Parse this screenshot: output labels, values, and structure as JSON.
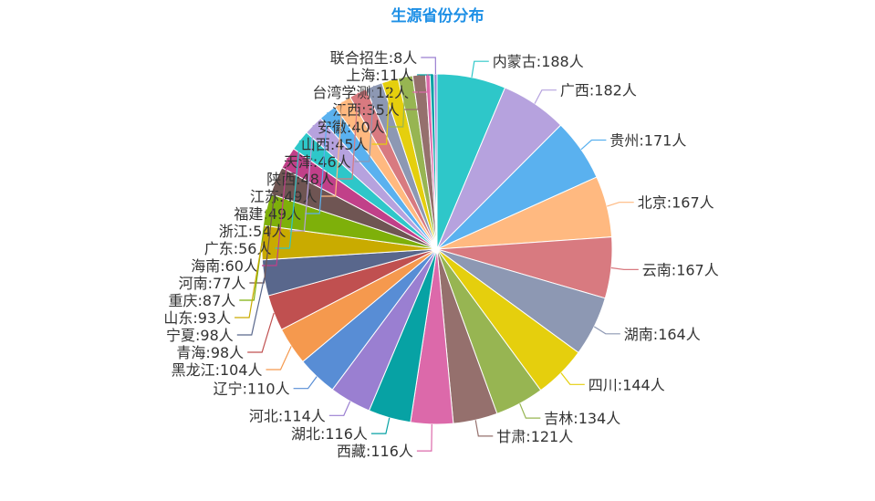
{
  "chart_data": {
    "type": "pie",
    "title": "生源省份分布",
    "unit": "人",
    "series": [
      {
        "name": "内蒙古",
        "value": 188,
        "color": "#2ec7c9"
      },
      {
        "name": "广西",
        "value": 182,
        "color": "#b6a2de"
      },
      {
        "name": "贵州",
        "value": 171,
        "color": "#5ab1ef"
      },
      {
        "name": "北京",
        "value": 167,
        "color": "#ffb980"
      },
      {
        "name": "云南",
        "value": 167,
        "color": "#d87a80"
      },
      {
        "name": "湖南",
        "value": 164,
        "color": "#8d98b3"
      },
      {
        "name": "四川",
        "value": 144,
        "color": "#e5cf0d"
      },
      {
        "name": "吉林",
        "value": 134,
        "color": "#97b552"
      },
      {
        "name": "甘肃",
        "value": 121,
        "color": "#95706d"
      },
      {
        "name": "西藏",
        "value": 116,
        "color": "#dc69aa"
      },
      {
        "name": "湖北",
        "value": 116,
        "color": "#07a2a4"
      },
      {
        "name": "河北",
        "value": 114,
        "color": "#9a7fd1"
      },
      {
        "name": "辽宁",
        "value": 110,
        "color": "#588dd5"
      },
      {
        "name": "黑龙江",
        "value": 104,
        "color": "#f5994e"
      },
      {
        "name": "青海",
        "value": 98,
        "color": "#c05050"
      },
      {
        "name": "宁夏",
        "value": 98,
        "color": "#59678c"
      },
      {
        "name": "山东",
        "value": 93,
        "color": "#c9ab00"
      },
      {
        "name": "重庆",
        "value": 87,
        "color": "#7eb00a"
      },
      {
        "name": "河南",
        "value": 77,
        "color": "#6f5553"
      },
      {
        "name": "海南",
        "value": 60,
        "color": "#c14089"
      },
      {
        "name": "广东",
        "value": 56,
        "color": "#2ec7c9"
      },
      {
        "name": "浙江",
        "value": 54,
        "color": "#b6a2de"
      },
      {
        "name": "福建",
        "value": 49,
        "color": "#5ab1ef"
      },
      {
        "name": "江苏",
        "value": 49,
        "color": "#ffb980"
      },
      {
        "name": "陕西",
        "value": 48,
        "color": "#d87a80"
      },
      {
        "name": "天津",
        "value": 46,
        "color": "#8d98b3"
      },
      {
        "name": "山西",
        "value": 45,
        "color": "#e5cf0d"
      },
      {
        "name": "安徽",
        "value": 40,
        "color": "#97b552"
      },
      {
        "name": "江西",
        "value": 35,
        "color": "#95706d"
      },
      {
        "name": "台湾学测",
        "value": 12,
        "color": "#dc69aa"
      },
      {
        "name": "上海",
        "value": 11,
        "color": "#07a2a4"
      },
      {
        "name": "联合招生",
        "value": 8,
        "color": "#9a7fd1"
      }
    ]
  }
}
